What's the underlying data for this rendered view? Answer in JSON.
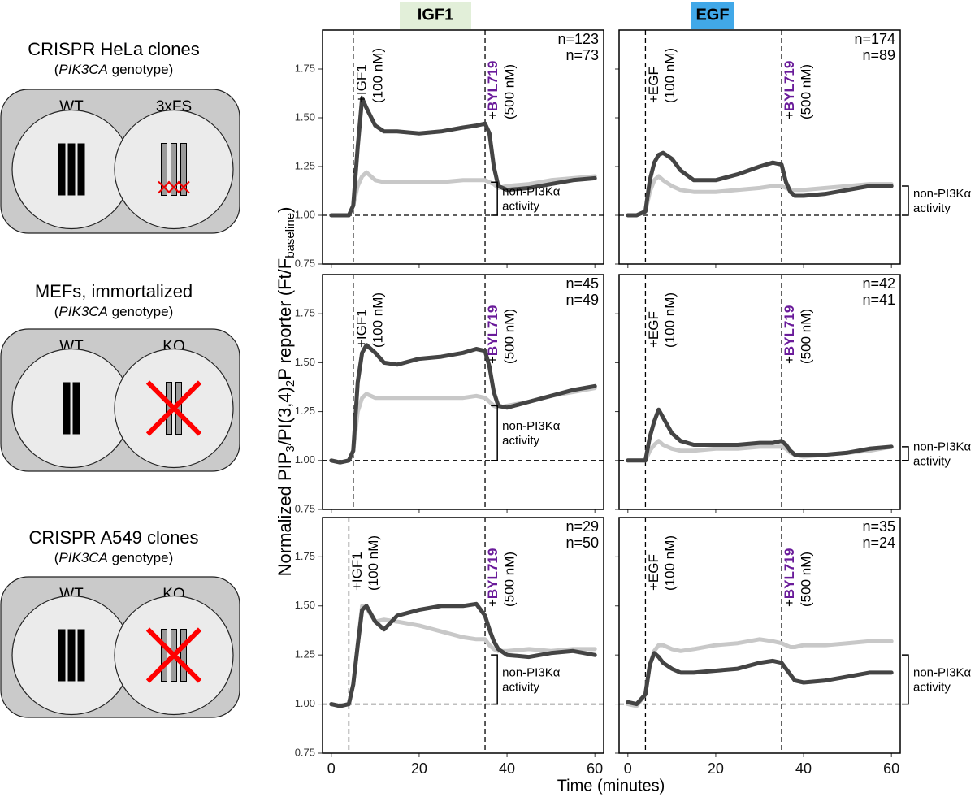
{
  "figure": {
    "col_titles": [
      "IGF1",
      "EGF"
    ],
    "x_label": "Time (minutes)",
    "y_label": [
      "Normalized PIP",
      "3",
      "/PI(3,4)",
      "2",
      "P reporter (Ft/F",
      "baseline",
      ")"
    ]
  },
  "genotype_panels": [
    {
      "title": "CRISPR HeLa clones",
      "subtitle": [
        "(",
        "PIK3CA",
        " genotype)"
      ],
      "labels": [
        "WT",
        "3xFS"
      ],
      "bars": 3
    },
    {
      "title": "MEFs, immortalized",
      "subtitle": [
        "(",
        "PIK3CA",
        " genotype)"
      ],
      "labels": [
        "WT",
        "KO"
      ],
      "bars": 2
    },
    {
      "title": "CRISPR A549 clones",
      "subtitle": [
        "(",
        "PIK3CA",
        " genotype)"
      ],
      "labels": [
        "WT",
        "KO"
      ],
      "bars": 3
    }
  ],
  "chart_data": [
    {
      "type": "line",
      "xlim": [
        -2,
        62
      ],
      "ylim": [
        0.75,
        1.95
      ],
      "xticks": [
        0,
        20,
        40,
        60
      ],
      "yticks": [
        {
          "value": 0.75,
          "label": "0.75"
        },
        {
          "value": 1,
          "label": "1.00"
        },
        {
          "value": 1.25,
          "label": "1.25"
        },
        {
          "value": 1.5,
          "label": "1.50"
        },
        {
          "value": 1.75,
          "label": "1.75"
        }
      ],
      "x": [
        0,
        2,
        4,
        5,
        6,
        7,
        8,
        10,
        12,
        15,
        20,
        25,
        30,
        33,
        35,
        36,
        37,
        38,
        40,
        45,
        50,
        55,
        60
      ],
      "series": [
        {
          "color": "#c8c8c8",
          "values": [
            1,
            1,
            1,
            1.05,
            1.15,
            1.2,
            1.22,
            1.18,
            1.17,
            1.17,
            1.17,
            1.17,
            1.18,
            1.18,
            1.18,
            1.17,
            1.16,
            1.14,
            1.15,
            1.16,
            1.18,
            1.19,
            1.2
          ]
        },
        {
          "color": "#444444",
          "values": [
            1,
            1,
            1,
            1.05,
            1.35,
            1.6,
            1.55,
            1.46,
            1.43,
            1.43,
            1.42,
            1.43,
            1.45,
            1.46,
            1.47,
            1.42,
            1.25,
            1.15,
            1.13,
            1.14,
            1.16,
            1.18,
            1.19
          ]
        }
      ],
      "stim_time": 5,
      "inhibitor_time": 35,
      "baseline": 1,
      "stim_label": "+IGF1",
      "stim_dose": "(100 nM)",
      "inhibitor_label": [
        "+",
        "BYL719"
      ],
      "inhibitor_dose": "(500 nM)",
      "n_labels": [
        "n=123",
        "n=73"
      ],
      "bracket": [
        1,
        1.17
      ],
      "bracket_label": [
        "non-PI3Kα",
        "activity"
      ]
    },
    {
      "type": "line",
      "xlim": [
        -2,
        62
      ],
      "ylim": [
        0.75,
        1.95
      ],
      "xticks": [
        0,
        20,
        40,
        60
      ],
      "yticks": [
        {
          "value": 0.75,
          "label": "0.75"
        },
        {
          "value": 1,
          "label": "1.00"
        },
        {
          "value": 1.25,
          "label": "1.25"
        },
        {
          "value": 1.5,
          "label": "1.50"
        },
        {
          "value": 1.75,
          "label": "1.75"
        }
      ],
      "x": [
        0,
        2,
        4,
        5,
        6,
        7,
        8,
        10,
        12,
        15,
        20,
        25,
        30,
        33,
        35,
        36,
        37,
        38,
        40,
        45,
        50,
        55,
        60
      ],
      "series": [
        {
          "color": "#c8c8c8",
          "values": [
            1,
            1,
            1.02,
            1.12,
            1.18,
            1.2,
            1.18,
            1.15,
            1.13,
            1.12,
            1.12,
            1.13,
            1.14,
            1.15,
            1.15,
            1.14,
            1.13,
            1.13,
            1.13,
            1.14,
            1.15,
            1.16,
            1.16
          ]
        },
        {
          "color": "#444444",
          "values": [
            1,
            1,
            1.02,
            1.18,
            1.27,
            1.31,
            1.32,
            1.29,
            1.23,
            1.18,
            1.18,
            1.21,
            1.25,
            1.27,
            1.26,
            1.17,
            1.12,
            1.1,
            1.1,
            1.11,
            1.13,
            1.15,
            1.15
          ]
        }
      ],
      "stim_time": 4,
      "inhibitor_time": 35,
      "baseline": 1,
      "stim_label": "+EGF",
      "stim_dose": "(100 nM)",
      "inhibitor_label": [
        "+",
        "BYL719"
      ],
      "inhibitor_dose": "(500 nM)",
      "n_labels": [
        "n=174",
        "n=89"
      ],
      "bracket": [
        1,
        1.15
      ],
      "bracket_label": [
        "non-PI3Kα",
        "activity"
      ]
    },
    {
      "type": "line",
      "xlim": [
        -2,
        62
      ],
      "ylim": [
        0.75,
        1.95
      ],
      "xticks": [
        0,
        20,
        40,
        60
      ],
      "yticks": [
        {
          "value": 0.75,
          "label": "0.75"
        },
        {
          "value": 1,
          "label": "1.00"
        },
        {
          "value": 1.25,
          "label": "1.25"
        },
        {
          "value": 1.5,
          "label": "1.50"
        },
        {
          "value": 1.75,
          "label": "1.75"
        }
      ],
      "x": [
        0,
        2,
        4,
        5,
        6,
        7,
        8,
        10,
        12,
        15,
        20,
        25,
        30,
        33,
        35,
        36,
        37,
        38,
        40,
        45,
        50,
        55,
        60
      ],
      "series": [
        {
          "color": "#c8c8c8",
          "values": [
            1,
            0.99,
            1,
            1.05,
            1.25,
            1.32,
            1.34,
            1.32,
            1.32,
            1.32,
            1.32,
            1.32,
            1.32,
            1.33,
            1.32,
            1.3,
            1.28,
            1.27,
            1.28,
            1.3,
            1.33,
            1.35,
            1.37
          ]
        },
        {
          "color": "#444444",
          "values": [
            1,
            0.99,
            1,
            1.05,
            1.4,
            1.55,
            1.59,
            1.55,
            1.5,
            1.49,
            1.52,
            1.53,
            1.55,
            1.57,
            1.56,
            1.48,
            1.35,
            1.28,
            1.27,
            1.3,
            1.33,
            1.36,
            1.38
          ]
        }
      ],
      "stim_time": 5,
      "inhibitor_time": 35,
      "baseline": 1,
      "stim_label": "+IGF1",
      "stim_dose": "(100 nM)",
      "inhibitor_label": [
        "+",
        "BYL719"
      ],
      "inhibitor_dose": "(500 nM)",
      "n_labels": [
        "n=45",
        "n=49"
      ],
      "bracket": [
        1,
        1.28
      ],
      "bracket_label": [
        "non-PI3Kα",
        "activity"
      ]
    },
    {
      "type": "line",
      "xlim": [
        -2,
        62
      ],
      "ylim": [
        0.75,
        1.95
      ],
      "xticks": [
        0,
        20,
        40,
        60
      ],
      "yticks": [
        {
          "value": 0.75,
          "label": "0.75"
        },
        {
          "value": 1,
          "label": "1.00"
        },
        {
          "value": 1.25,
          "label": "1.25"
        },
        {
          "value": 1.5,
          "label": "1.50"
        },
        {
          "value": 1.75,
          "label": "1.75"
        }
      ],
      "x": [
        0,
        2,
        4,
        5,
        6,
        7,
        8,
        10,
        12,
        15,
        20,
        25,
        30,
        33,
        35,
        36,
        37,
        38,
        40,
        45,
        50,
        55,
        60
      ],
      "series": [
        {
          "color": "#c8c8c8",
          "values": [
            1,
            1,
            1,
            1.05,
            1.08,
            1.1,
            1.08,
            1.06,
            1.05,
            1.05,
            1.06,
            1.06,
            1.07,
            1.07,
            1.07,
            1.06,
            1.04,
            1.03,
            1.02,
            1.03,
            1.04,
            1.05,
            1.07
          ]
        },
        {
          "color": "#444444",
          "values": [
            1,
            1,
            1,
            1.12,
            1.2,
            1.26,
            1.22,
            1.14,
            1.1,
            1.08,
            1.08,
            1.08,
            1.09,
            1.09,
            1.1,
            1.08,
            1.05,
            1.03,
            1.03,
            1.03,
            1.04,
            1.06,
            1.07
          ]
        }
      ],
      "stim_time": 4,
      "inhibitor_time": 35,
      "baseline": 1,
      "stim_label": "+EGF",
      "stim_dose": "(100 nM)",
      "inhibitor_label": [
        "+",
        "BYL719"
      ],
      "inhibitor_dose": "(500 nM)",
      "n_labels": [
        "n=42",
        "n=41"
      ],
      "bracket": [
        1,
        1.07
      ],
      "bracket_label": [
        "non-PI3Kα",
        "activity"
      ]
    },
    {
      "type": "line",
      "xlim": [
        -2,
        62
      ],
      "ylim": [
        0.75,
        1.95
      ],
      "xticks": [
        0,
        20,
        40,
        60
      ],
      "yticks": [
        {
          "value": 0.75,
          "label": "0.75"
        },
        {
          "value": 1,
          "label": "1.00"
        },
        {
          "value": 1.25,
          "label": "1.25"
        },
        {
          "value": 1.5,
          "label": "1.50"
        },
        {
          "value": 1.75,
          "label": "1.75"
        }
      ],
      "x": [
        0,
        2,
        4,
        5,
        6,
        7,
        8,
        10,
        12,
        15,
        20,
        25,
        30,
        33,
        35,
        36,
        37,
        38,
        40,
        45,
        50,
        55,
        60
      ],
      "series": [
        {
          "color": "#c8c8c8",
          "values": [
            1,
            0.99,
            1,
            1.1,
            1.3,
            1.5,
            1.49,
            1.42,
            1.43,
            1.42,
            1.4,
            1.37,
            1.34,
            1.33,
            1.33,
            1.3,
            1.28,
            1.27,
            1.27,
            1.28,
            1.27,
            1.28,
            1.28
          ]
        },
        {
          "color": "#444444",
          "values": [
            1,
            0.99,
            1,
            1.1,
            1.3,
            1.48,
            1.5,
            1.42,
            1.38,
            1.45,
            1.48,
            1.5,
            1.5,
            1.51,
            1.45,
            1.38,
            1.32,
            1.28,
            1.25,
            1.24,
            1.26,
            1.27,
            1.25
          ]
        }
      ],
      "stim_time": 4,
      "inhibitor_time": 35,
      "baseline": 1,
      "stim_label": "+IGF1",
      "stim_dose": "(100 nM)",
      "inhibitor_label": [
        "+",
        "BYL719"
      ],
      "inhibitor_dose": "(500 nM)",
      "n_labels": [
        "n=29",
        "n=50"
      ],
      "bracket": [
        1,
        1.25
      ],
      "bracket_label": [
        "non-PI3Kα",
        "activity"
      ]
    },
    {
      "type": "line",
      "xlim": [
        -2,
        62
      ],
      "ylim": [
        0.75,
        1.95
      ],
      "xticks": [
        0,
        20,
        40,
        60
      ],
      "yticks": [
        {
          "value": 0.75,
          "label": "0.75"
        },
        {
          "value": 1,
          "label": "1.00"
        },
        {
          "value": 1.25,
          "label": "1.25"
        },
        {
          "value": 1.5,
          "label": "1.50"
        },
        {
          "value": 1.75,
          "label": "1.75"
        }
      ],
      "x": [
        0,
        2,
        4,
        5,
        6,
        7,
        8,
        10,
        12,
        15,
        20,
        25,
        30,
        33,
        35,
        36,
        37,
        38,
        40,
        45,
        50,
        55,
        60
      ],
      "series": [
        {
          "color": "#c8c8c8",
          "values": [
            1,
            0.99,
            1.05,
            1.2,
            1.27,
            1.3,
            1.3,
            1.28,
            1.27,
            1.28,
            1.3,
            1.31,
            1.33,
            1.32,
            1.31,
            1.3,
            1.29,
            1.29,
            1.3,
            1.3,
            1.31,
            1.32,
            1.32
          ]
        },
        {
          "color": "#444444",
          "values": [
            1.01,
            1,
            1.05,
            1.2,
            1.26,
            1.24,
            1.21,
            1.18,
            1.16,
            1.16,
            1.17,
            1.18,
            1.21,
            1.22,
            1.21,
            1.18,
            1.15,
            1.12,
            1.11,
            1.12,
            1.14,
            1.16,
            1.16
          ]
        }
      ],
      "stim_time": 4,
      "inhibitor_time": 35,
      "baseline": 1,
      "stim_label": "+EGF",
      "stim_dose": "(100 nM)",
      "inhibitor_label": [
        "+",
        "BYL719"
      ],
      "inhibitor_dose": "(500 nM)",
      "n_labels": [
        "n=35",
        "n=24"
      ],
      "bracket": [
        1,
        1.25
      ],
      "bracket_label": [
        "non-PI3Kα",
        "activity"
      ]
    }
  ]
}
